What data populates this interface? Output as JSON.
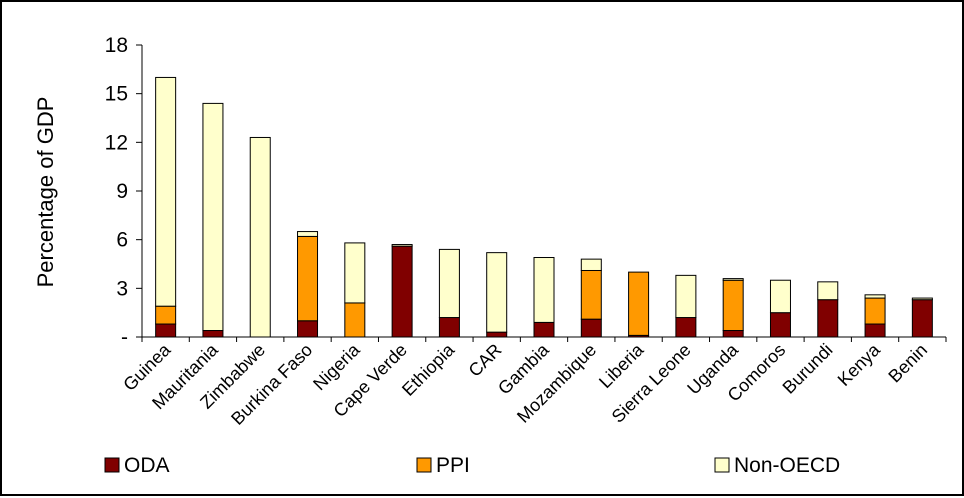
{
  "chart_data": {
    "type": "bar",
    "stacked": true,
    "ylabel": "Percentage of GDP",
    "xlabel": "",
    "ylim": [
      0,
      18
    ],
    "yticks": [
      {
        "value": 0,
        "label": "-"
      },
      {
        "value": 3,
        "label": "3"
      },
      {
        "value": 6,
        "label": "6"
      },
      {
        "value": 9,
        "label": "9"
      },
      {
        "value": 12,
        "label": "12"
      },
      {
        "value": 15,
        "label": "15"
      },
      {
        "value": 18,
        "label": "18"
      }
    ],
    "grid": false,
    "legend_position": "bottom",
    "categories": [
      "Guinea",
      "Mauritania",
      "Zimbabwe",
      "Burkina Faso",
      "Nigeria",
      "Cape Verde",
      "Ethiopia",
      "CAR",
      "Gambia",
      "Mozambique",
      "Liberia",
      "Sierra Leone",
      "Uganda",
      "Comoros",
      "Burundi",
      "Kenya",
      "Benin"
    ],
    "series": [
      {
        "name": "ODA",
        "color": "#800000",
        "values": [
          0.8,
          0.4,
          0.0,
          1.0,
          0.0,
          5.6,
          1.2,
          0.3,
          0.9,
          1.1,
          0.1,
          1.2,
          0.4,
          1.5,
          2.3,
          0.8,
          2.3
        ]
      },
      {
        "name": "PPI",
        "color": "#FF9900",
        "values": [
          1.1,
          0.0,
          0.0,
          5.2,
          2.1,
          0.0,
          0.0,
          0.0,
          0.0,
          3.0,
          3.9,
          0.0,
          3.1,
          0.0,
          0.0,
          1.6,
          0.0
        ]
      },
      {
        "name": "Non-OECD",
        "color": "#FFFFCC",
        "values": [
          14.1,
          14.0,
          12.3,
          0.3,
          3.7,
          0.1,
          4.2,
          4.9,
          4.0,
          0.7,
          0.0,
          2.6,
          0.1,
          2.0,
          1.1,
          0.2,
          0.1
        ]
      }
    ]
  }
}
